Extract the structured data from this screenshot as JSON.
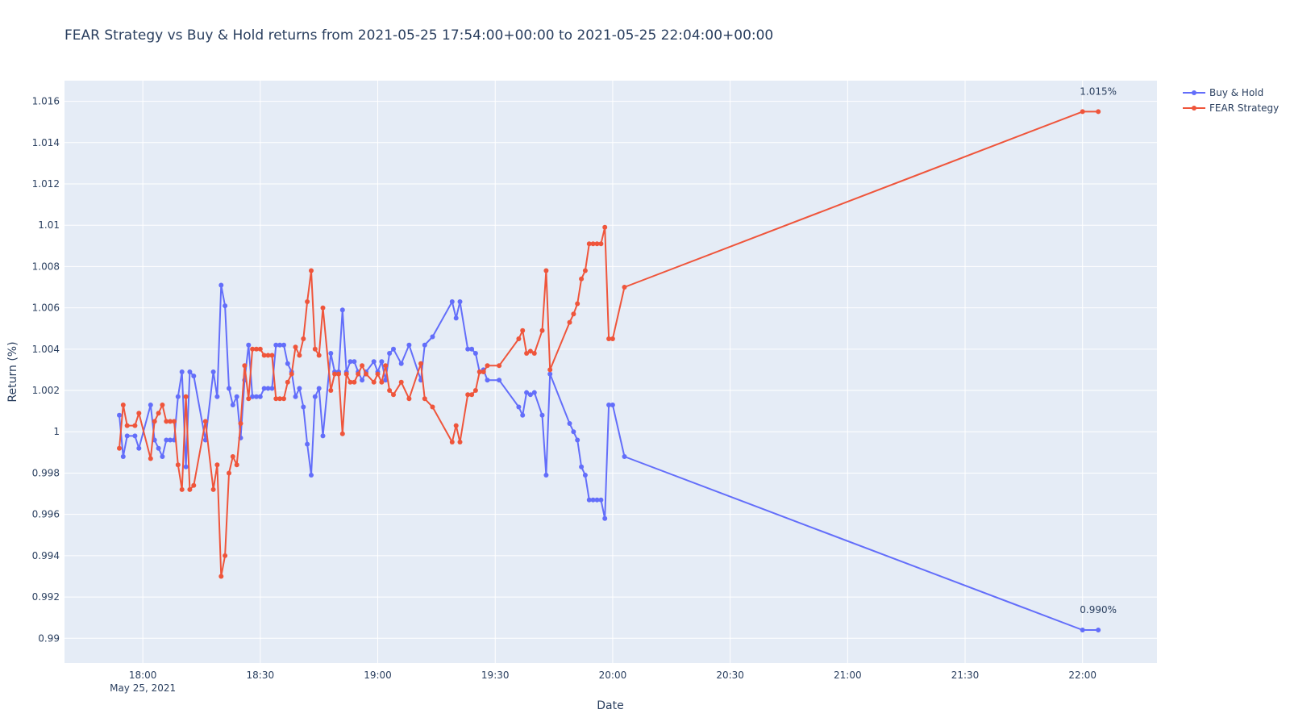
{
  "chart_data": {
    "type": "line",
    "title": "FEAR Strategy vs Buy & Hold returns from 2021-05-25 17:54:00+00:00 to 2021-05-25 22:04:00+00:00",
    "xlabel": "Date",
    "ylabel": "Return (%)",
    "x_tick_labels": [
      {
        "time": "18:00",
        "label": "18:00",
        "sublabel": "May 25, 2021"
      },
      {
        "time": "18:30",
        "label": "18:30"
      },
      {
        "time": "19:00",
        "label": "19:00"
      },
      {
        "time": "19:30",
        "label": "19:30"
      },
      {
        "time": "20:00",
        "label": "20:00"
      },
      {
        "time": "20:30",
        "label": "20:30"
      },
      {
        "time": "21:00",
        "label": "21:00"
      },
      {
        "time": "21:30",
        "label": "21:30"
      },
      {
        "time": "22:00",
        "label": "22:00"
      }
    ],
    "xlim": [
      "17:40",
      "22:19"
    ],
    "ylim": [
      0.9888,
      1.017
    ],
    "y_ticks": [
      {
        "value": 0.99,
        "label": "0.99"
      },
      {
        "value": 0.992,
        "label": "0.992"
      },
      {
        "value": 0.994,
        "label": "0.994"
      },
      {
        "value": 0.996,
        "label": "0.996"
      },
      {
        "value": 0.998,
        "label": "0.998"
      },
      {
        "value": 1.0,
        "label": "1"
      },
      {
        "value": 1.002,
        "label": "1.002"
      },
      {
        "value": 1.004,
        "label": "1.004"
      },
      {
        "value": 1.006,
        "label": "1.006"
      },
      {
        "value": 1.008,
        "label": "1.008"
      },
      {
        "value": 1.01,
        "label": "1.01"
      },
      {
        "value": 1.012,
        "label": "1.012"
      },
      {
        "value": 1.014,
        "label": "1.014"
      },
      {
        "value": 1.016,
        "label": "1.016"
      }
    ],
    "grid": true,
    "legend_position": "top-right",
    "colors": {
      "plot_bg": "#e5ecf6",
      "grid": "#ffffff",
      "text": "#2a3f5f"
    },
    "series": [
      {
        "name": "Buy & Hold",
        "color": "#636efa",
        "points": [
          [
            "17:54",
            1.0008
          ],
          [
            "17:55",
            0.9988
          ],
          [
            "17:56",
            0.9998
          ],
          [
            "17:58",
            0.9998
          ],
          [
            "17:59",
            0.9992
          ],
          [
            "18:02",
            1.0013
          ],
          [
            "18:03",
            0.9996
          ],
          [
            "18:04",
            0.9992
          ],
          [
            "18:05",
            0.9988
          ],
          [
            "18:06",
            0.9996
          ],
          [
            "18:07",
            0.9996
          ],
          [
            "18:08",
            0.9996
          ],
          [
            "18:09",
            1.0017
          ],
          [
            "18:10",
            1.0029
          ],
          [
            "18:11",
            0.9983
          ],
          [
            "18:12",
            1.0029
          ],
          [
            "18:13",
            1.0027
          ],
          [
            "18:16",
            0.9996
          ],
          [
            "18:18",
            1.0029
          ],
          [
            "18:19",
            1.0017
          ],
          [
            "18:20",
            1.0071
          ],
          [
            "18:21",
            1.0061
          ],
          [
            "18:22",
            1.0021
          ],
          [
            "18:23",
            1.0013
          ],
          [
            "18:24",
            1.0017
          ],
          [
            "18:25",
            0.9997
          ],
          [
            "18:26",
            1.0025
          ],
          [
            "18:27",
            1.0042
          ],
          [
            "18:28",
            1.0017
          ],
          [
            "18:29",
            1.0017
          ],
          [
            "18:30",
            1.0017
          ],
          [
            "18:31",
            1.0021
          ],
          [
            "18:32",
            1.0021
          ],
          [
            "18:33",
            1.0021
          ],
          [
            "18:34",
            1.0042
          ],
          [
            "18:35",
            1.0042
          ],
          [
            "18:36",
            1.0042
          ],
          [
            "18:37",
            1.0033
          ],
          [
            "18:38",
            1.0029
          ],
          [
            "18:39",
            1.0017
          ],
          [
            "18:40",
            1.0021
          ],
          [
            "18:41",
            1.0012
          ],
          [
            "18:42",
            0.9994
          ],
          [
            "18:43",
            0.9979
          ],
          [
            "18:44",
            1.0017
          ],
          [
            "18:45",
            1.0021
          ],
          [
            "18:46",
            0.9998
          ],
          [
            "18:48",
            1.0038
          ],
          [
            "18:49",
            1.0029
          ],
          [
            "18:50",
            1.0029
          ],
          [
            "18:51",
            1.0059
          ],
          [
            "18:52",
            1.0029
          ],
          [
            "18:53",
            1.0034
          ],
          [
            "18:54",
            1.0034
          ],
          [
            "18:55",
            1.0029
          ],
          [
            "18:56",
            1.0025
          ],
          [
            "18:57",
            1.0029
          ],
          [
            "18:59",
            1.0034
          ],
          [
            "19:00",
            1.0029
          ],
          [
            "19:01",
            1.0034
          ],
          [
            "19:02",
            1.0025
          ],
          [
            "19:03",
            1.0038
          ],
          [
            "19:04",
            1.004
          ],
          [
            "19:06",
            1.0033
          ],
          [
            "19:08",
            1.0042
          ],
          [
            "19:11",
            1.0025
          ],
          [
            "19:12",
            1.0042
          ],
          [
            "19:14",
            1.0046
          ],
          [
            "19:19",
            1.0063
          ],
          [
            "19:20",
            1.0055
          ],
          [
            "19:21",
            1.0063
          ],
          [
            "19:23",
            1.004
          ],
          [
            "19:24",
            1.004
          ],
          [
            "19:25",
            1.0038
          ],
          [
            "19:26",
            1.0029
          ],
          [
            "19:27",
            1.003
          ],
          [
            "19:28",
            1.0025
          ],
          [
            "19:31",
            1.0025
          ],
          [
            "19:36",
            1.0012
          ],
          [
            "19:37",
            1.0008
          ],
          [
            "19:38",
            1.0019
          ],
          [
            "19:39",
            1.0018
          ],
          [
            "19:40",
            1.0019
          ],
          [
            "19:42",
            1.0008
          ],
          [
            "19:43",
            0.9979
          ],
          [
            "19:44",
            1.0028
          ],
          [
            "19:49",
            1.0004
          ],
          [
            "19:50",
            1.0
          ],
          [
            "19:51",
            0.9996
          ],
          [
            "19:52",
            0.9983
          ],
          [
            "19:53",
            0.9979
          ],
          [
            "19:54",
            0.9967
          ],
          [
            "19:55",
            0.9967
          ],
          [
            "19:56",
            0.9967
          ],
          [
            "19:57",
            0.9967
          ],
          [
            "19:58",
            0.9958
          ],
          [
            "19:59",
            1.0013
          ],
          [
            "20:00",
            1.0013
          ],
          [
            "20:03",
            0.9988
          ],
          [
            "22:00",
            0.9904
          ],
          [
            "22:04",
            0.9904
          ]
        ]
      },
      {
        "name": "FEAR Strategy",
        "color": "#ef553b",
        "points": [
          [
            "17:54",
            0.9992
          ],
          [
            "17:55",
            1.0013
          ],
          [
            "17:56",
            1.0003
          ],
          [
            "17:58",
            1.0003
          ],
          [
            "17:59",
            1.0009
          ],
          [
            "18:02",
            0.9987
          ],
          [
            "18:03",
            1.0005
          ],
          [
            "18:04",
            1.0009
          ],
          [
            "18:05",
            1.0013
          ],
          [
            "18:06",
            1.0005
          ],
          [
            "18:07",
            1.0005
          ],
          [
            "18:08",
            1.0005
          ],
          [
            "18:09",
            0.9984
          ],
          [
            "18:10",
            0.9972
          ],
          [
            "18:11",
            1.0017
          ],
          [
            "18:12",
            0.9972
          ],
          [
            "18:13",
            0.9974
          ],
          [
            "18:16",
            1.0005
          ],
          [
            "18:18",
            0.9972
          ],
          [
            "18:19",
            0.9984
          ],
          [
            "18:20",
            0.993
          ],
          [
            "18:21",
            0.994
          ],
          [
            "18:22",
            0.998
          ],
          [
            "18:23",
            0.9988
          ],
          [
            "18:24",
            0.9984
          ],
          [
            "18:25",
            1.0004
          ],
          [
            "18:26",
            1.0032
          ],
          [
            "18:27",
            1.0016
          ],
          [
            "18:28",
            1.004
          ],
          [
            "18:29",
            1.004
          ],
          [
            "18:30",
            1.004
          ],
          [
            "18:31",
            1.0037
          ],
          [
            "18:32",
            1.0037
          ],
          [
            "18:33",
            1.0037
          ],
          [
            "18:34",
            1.0016
          ],
          [
            "18:35",
            1.0016
          ],
          [
            "18:36",
            1.0016
          ],
          [
            "18:37",
            1.0024
          ],
          [
            "18:38",
            1.0028
          ],
          [
            "18:39",
            1.0041
          ],
          [
            "18:40",
            1.0037
          ],
          [
            "18:41",
            1.0045
          ],
          [
            "18:42",
            1.0063
          ],
          [
            "18:43",
            1.0078
          ],
          [
            "18:44",
            1.004
          ],
          [
            "18:45",
            1.0037
          ],
          [
            "18:46",
            1.006
          ],
          [
            "18:48",
            1.002
          ],
          [
            "18:49",
            1.0028
          ],
          [
            "18:50",
            1.0028
          ],
          [
            "18:51",
            0.9999
          ],
          [
            "18:52",
            1.0028
          ],
          [
            "18:53",
            1.0024
          ],
          [
            "18:54",
            1.0024
          ],
          [
            "18:55",
            1.0028
          ],
          [
            "18:56",
            1.0032
          ],
          [
            "18:57",
            1.0028
          ],
          [
            "18:59",
            1.0024
          ],
          [
            "19:00",
            1.0028
          ],
          [
            "19:01",
            1.0024
          ],
          [
            "19:02",
            1.0032
          ],
          [
            "19:03",
            1.002
          ],
          [
            "19:04",
            1.0018
          ],
          [
            "19:06",
            1.0024
          ],
          [
            "19:08",
            1.0016
          ],
          [
            "19:11",
            1.0033
          ],
          [
            "19:12",
            1.0016
          ],
          [
            "19:14",
            1.0012
          ],
          [
            "19:19",
            0.9995
          ],
          [
            "19:20",
            1.0003
          ],
          [
            "19:21",
            0.9995
          ],
          [
            "19:23",
            1.0018
          ],
          [
            "19:24",
            1.0018
          ],
          [
            "19:25",
            1.002
          ],
          [
            "19:26",
            1.0029
          ],
          [
            "19:27",
            1.0029
          ],
          [
            "19:28",
            1.0032
          ],
          [
            "19:31",
            1.0032
          ],
          [
            "19:36",
            1.0045
          ],
          [
            "19:37",
            1.0049
          ],
          [
            "19:38",
            1.0038
          ],
          [
            "19:39",
            1.0039
          ],
          [
            "19:40",
            1.0038
          ],
          [
            "19:42",
            1.0049
          ],
          [
            "19:43",
            1.0078
          ],
          [
            "19:44",
            1.003
          ],
          [
            "19:49",
            1.0053
          ],
          [
            "19:50",
            1.0057
          ],
          [
            "19:51",
            1.0062
          ],
          [
            "19:52",
            1.0074
          ],
          [
            "19:53",
            1.0078
          ],
          [
            "19:54",
            1.0091
          ],
          [
            "19:55",
            1.0091
          ],
          [
            "19:56",
            1.0091
          ],
          [
            "19:57",
            1.0091
          ],
          [
            "19:58",
            1.0099
          ],
          [
            "19:59",
            1.0045
          ],
          [
            "20:00",
            1.0045
          ],
          [
            "20:03",
            1.007
          ],
          [
            "22:00",
            1.0155
          ],
          [
            "22:04",
            1.0155
          ]
        ]
      }
    ],
    "annotations": [
      {
        "text": "1.015%",
        "time": "22:04",
        "value": 1.0155,
        "series": "FEAR Strategy"
      },
      {
        "text": "0.990%",
        "time": "22:04",
        "value": 0.9904,
        "series": "Buy & Hold"
      }
    ]
  }
}
